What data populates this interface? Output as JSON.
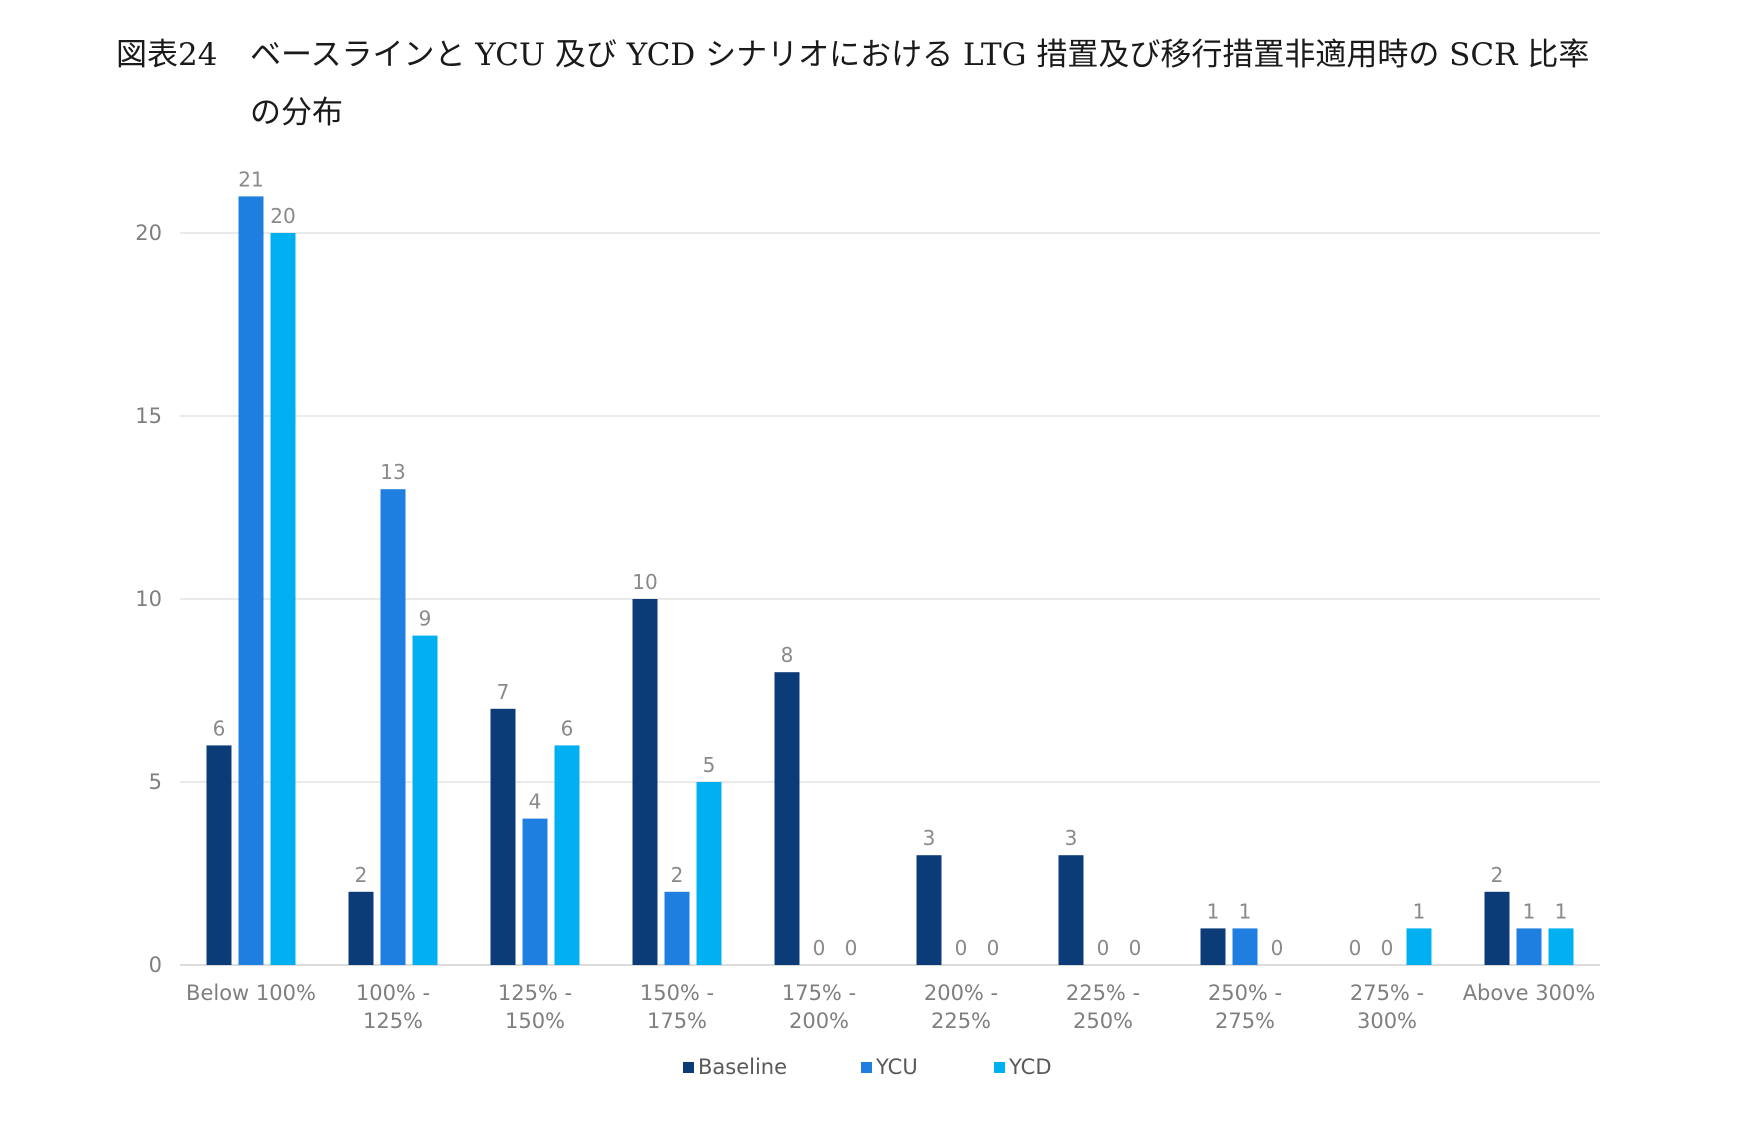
{
  "figure": {
    "number": "図表24",
    "title_line1": "ベースラインと YCU 及び YCD シナリオにおける LTG 措置及び移行措置非適用時の SCR 比率",
    "title_line2": "の分布"
  },
  "chart_data": {
    "type": "bar",
    "categories": [
      [
        "Below 100%"
      ],
      [
        "100% -",
        "125%"
      ],
      [
        "125% -",
        "150%"
      ],
      [
        "150% -",
        "175%"
      ],
      [
        "175% -",
        "200%"
      ],
      [
        "200% -",
        "225%"
      ],
      [
        "225% -",
        "250%"
      ],
      [
        "250% -",
        "275%"
      ],
      [
        "275% -",
        "300%"
      ],
      [
        "Above 300%"
      ]
    ],
    "series": [
      {
        "name": "Baseline",
        "color": "#0b3c78",
        "values": [
          6,
          2,
          7,
          10,
          8,
          3,
          3,
          1,
          0,
          2
        ]
      },
      {
        "name": "YCU",
        "color": "#1f7fe0",
        "values": [
          21,
          13,
          4,
          2,
          0,
          0,
          0,
          1,
          0,
          1
        ]
      },
      {
        "name": "YCD",
        "color": "#00b0f0",
        "values": [
          20,
          9,
          6,
          5,
          0,
          0,
          0,
          0,
          1,
          1
        ]
      }
    ],
    "ylim": [
      0,
      20
    ],
    "yticks": [
      0,
      5,
      10,
      15,
      20
    ],
    "grid": true,
    "data_labels": true,
    "legend_position": "bottom"
  }
}
